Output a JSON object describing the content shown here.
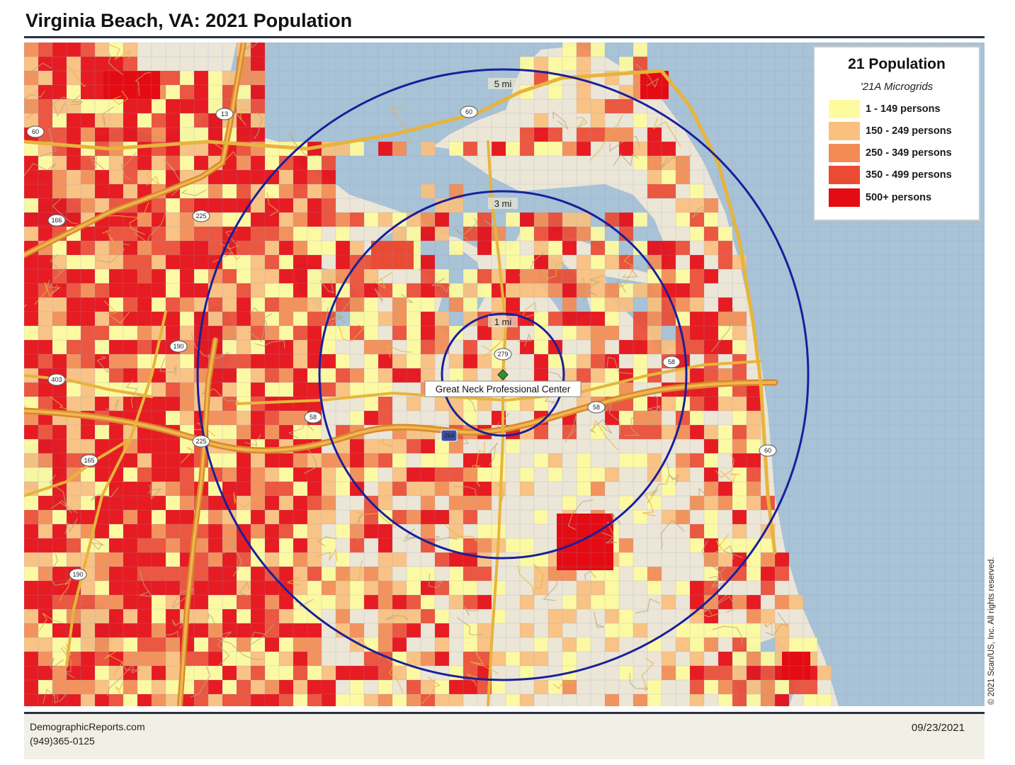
{
  "title": "Virginia Beach, VA: 2021 Population",
  "colors": {
    "water": "#a8c2d6",
    "land": "#ece6d6",
    "road_major": "#e7b43c",
    "road_minor": "#bfa67a",
    "grid_line": "#8f98d6",
    "ring": "#18209a",
    "rule": "#2b2f45",
    "footer_bg": "#f1f0e6"
  },
  "legend": {
    "title": "21 Population",
    "subtitle": "'21A Microgrids",
    "items": [
      {
        "label": "1 - 149 persons",
        "color": "#fdfb9e"
      },
      {
        "label": "150 - 249 persons",
        "color": "#f9c07e"
      },
      {
        "label": "250 - 349 persons",
        "color": "#f28c54"
      },
      {
        "label": "350 - 499 persons",
        "color": "#ea4b33"
      },
      {
        "label": "500+ persons",
        "color": "#e50b12"
      }
    ]
  },
  "rings": [
    {
      "label": "1 mi"
    },
    {
      "label": "3 mi"
    },
    {
      "label": "5 mi"
    }
  ],
  "center": {
    "label": "Great Neck Professional Center"
  },
  "road_shields": [
    "13",
    "60",
    "60",
    "166",
    "225",
    "190",
    "403",
    "58",
    "58",
    "58",
    "264",
    "225",
    "165",
    "190",
    "279",
    "60"
  ],
  "copyright": "© 2021 Scan/US, Inc. All rights reserved.",
  "footer": {
    "site": "DemographicReports.com",
    "phone": "(949)365-0125",
    "date": "09/23/2021"
  }
}
